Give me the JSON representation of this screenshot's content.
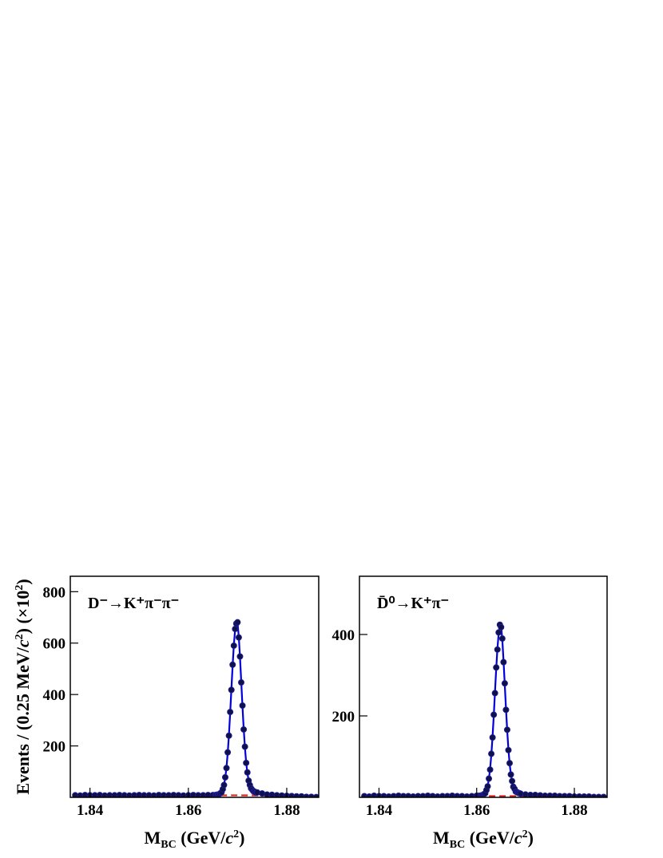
{
  "chart_data": [
    {
      "type": "scatter",
      "annotation": "D⁻→K⁺π⁻π⁻",
      "xlabel_parts": [
        "M",
        "BC",
        " (GeV/",
        "c",
        "2",
        ")"
      ],
      "ylabel_parts": [
        "Events / (0.25 MeV/",
        "c",
        "2",
        ") (×10",
        "2",
        ")"
      ],
      "xlim": [
        1.836,
        1.8865
      ],
      "ylim": [
        0,
        860
      ],
      "xticks": [
        1.84,
        1.86,
        1.88
      ],
      "yticks": [
        200,
        400,
        600,
        800
      ],
      "x": [
        1.837,
        1.838,
        1.839,
        1.84,
        1.841,
        1.842,
        1.843,
        1.844,
        1.845,
        1.846,
        1.847,
        1.848,
        1.849,
        1.85,
        1.851,
        1.852,
        1.853,
        1.854,
        1.855,
        1.856,
        1.857,
        1.858,
        1.859,
        1.86,
        1.861,
        1.862,
        1.863,
        1.864,
        1.865,
        1.8655,
        1.86575,
        1.866,
        1.86625,
        1.8665,
        1.86675,
        1.867,
        1.86725,
        1.8675,
        1.86775,
        1.868,
        1.86825,
        1.8685,
        1.86875,
        1.869,
        1.86925,
        1.8695,
        1.86975,
        1.87,
        1.87025,
        1.8705,
        1.87075,
        1.871,
        1.87125,
        1.8715,
        1.87175,
        1.872,
        1.87225,
        1.8725,
        1.87275,
        1.873,
        1.87325,
        1.8735,
        1.87375,
        1.874,
        1.875,
        1.876,
        1.877,
        1.878,
        1.879,
        1.88,
        1.881,
        1.882,
        1.883,
        1.884,
        1.885,
        1.886
      ],
      "series": [
        {
          "style": "dashed",
          "color": "#dd2222",
          "values": [
            8,
            8,
            8,
            8,
            8,
            8,
            8,
            8,
            8,
            8,
            8,
            8,
            8,
            8,
            8,
            8,
            8,
            8,
            8,
            8,
            8,
            8,
            8,
            8,
            8,
            8,
            8,
            8,
            8,
            8,
            8,
            8,
            8,
            8,
            8,
            8,
            8,
            8,
            8,
            8,
            8,
            8,
            8,
            8,
            8,
            8,
            8,
            7.9,
            7.9,
            7.9,
            7.9,
            7.8,
            7.8,
            7.8,
            7.8,
            7.7,
            7.7,
            7.7,
            7.7,
            7.6,
            7.6,
            7.6,
            7.5,
            7.5,
            7.2,
            6.8,
            6.4,
            6,
            5.5,
            5,
            4.4,
            3.7,
            3,
            2.2,
            1.3,
            0.4
          ]
        },
        {
          "style": "line",
          "color": "#0000dd",
          "values": [
            8,
            8,
            8,
            8,
            8,
            8,
            8,
            8,
            8,
            8,
            8,
            8,
            8,
            8,
            8,
            8,
            8,
            8,
            8,
            8,
            8,
            8,
            8,
            8,
            8,
            8,
            8.2,
            8.4,
            8.7,
            9,
            9.5,
            10,
            12,
            15,
            21,
            31,
            49,
            76,
            116,
            172,
            243,
            328,
            421,
            513,
            593,
            651,
            680,
            678,
            625,
            544,
            450,
            354,
            267,
            194,
            136,
            95,
            66,
            47,
            36,
            28,
            24,
            21,
            19,
            18,
            14,
            11.6,
            9.8,
            8.3,
            7.1,
            6.1,
            5.2,
            4.3,
            3.4,
            2.5,
            1.6,
            0.6
          ]
        },
        {
          "style": "points",
          "color": "#10104a",
          "values": [
            8,
            7,
            9,
            8,
            8,
            9,
            7,
            8,
            8,
            9,
            8,
            7,
            8,
            9,
            8,
            8,
            7,
            9,
            8,
            8,
            9,
            8,
            7,
            8,
            9,
            8,
            8,
            9,
            9,
            9,
            10,
            11,
            12,
            16,
            20,
            32,
            48,
            78,
            114,
            175,
            240,
            332,
            418,
            516,
            590,
            655,
            676,
            681,
            622,
            548,
            447,
            357,
            264,
            197,
            134,
            97,
            65,
            48,
            35,
            29,
            23,
            22,
            18,
            19,
            15,
            11,
            10,
            8,
            7,
            6,
            5,
            4,
            4,
            2,
            2,
            1
          ]
        }
      ]
    },
    {
      "type": "scatter",
      "annotation": "D̄⁰→K⁺π⁻",
      "xlabel_parts": [
        "M",
        "BC",
        " (GeV/",
        "c",
        "2",
        ")"
      ],
      "xlim": [
        1.836,
        1.8867
      ],
      "ylim": [
        0,
        543
      ],
      "xticks": [
        1.84,
        1.86,
        1.88
      ],
      "yticks": [
        200,
        400
      ],
      "x": [
        1.837,
        1.838,
        1.839,
        1.84,
        1.841,
        1.842,
        1.843,
        1.844,
        1.845,
        1.846,
        1.847,
        1.848,
        1.849,
        1.85,
        1.851,
        1.852,
        1.853,
        1.854,
        1.855,
        1.856,
        1.857,
        1.858,
        1.859,
        1.86,
        1.8605,
        1.86075,
        1.861,
        1.86125,
        1.8615,
        1.86175,
        1.862,
        1.86225,
        1.8625,
        1.86275,
        1.863,
        1.86325,
        1.8635,
        1.86375,
        1.864,
        1.86425,
        1.8645,
        1.86475,
        1.865,
        1.86525,
        1.8655,
        1.86575,
        1.866,
        1.86625,
        1.8665,
        1.86675,
        1.867,
        1.86725,
        1.8675,
        1.86775,
        1.868,
        1.86825,
        1.8685,
        1.86875,
        1.869,
        1.87,
        1.871,
        1.872,
        1.873,
        1.874,
        1.875,
        1.876,
        1.877,
        1.878,
        1.879,
        1.88,
        1.881,
        1.882,
        1.883,
        1.884,
        1.885,
        1.886
      ],
      "series": [
        {
          "style": "dashed",
          "color": "#dd2222",
          "values": [
            3,
            3,
            3,
            3,
            3,
            3,
            3,
            3,
            3,
            3,
            3,
            3,
            3,
            3,
            3,
            3,
            3,
            3,
            3,
            3,
            3,
            3,
            3,
            3,
            3,
            3,
            3,
            3,
            3,
            3,
            3,
            3,
            3,
            3,
            3,
            3,
            3,
            3,
            3,
            3,
            3,
            3,
            3,
            3,
            3,
            3,
            3,
            3,
            3,
            3,
            3,
            3,
            3,
            3,
            3,
            3,
            3,
            3,
            3,
            3,
            3,
            2.9,
            2.9,
            2.8,
            2.7,
            2.6,
            2.5,
            2.4,
            2.3,
            2.1,
            1.9,
            1.7,
            1.4,
            1.1,
            0.8,
            0.4
          ]
        },
        {
          "style": "line",
          "color": "#0000dd",
          "values": [
            3,
            3,
            3,
            3,
            3,
            3,
            3,
            3,
            3,
            3,
            3,
            3,
            3,
            3,
            3,
            3,
            3,
            3,
            3,
            3,
            3,
            3,
            3,
            3,
            3.6,
            3.9,
            4.2,
            5.5,
            7.3,
            11,
            17,
            28,
            45,
            70,
            105,
            149,
            201,
            259,
            316,
            366,
            402,
            420,
            421,
            387,
            335,
            277,
            218,
            164,
            118,
            82,
            57,
            39,
            27,
            20,
            15,
            13,
            11,
            10,
            9,
            7,
            6,
            5.5,
            5,
            4.5,
            4,
            3.5,
            3.3,
            3,
            2.8,
            2.5,
            2.2,
            2,
            1.7,
            1.4,
            1.1,
            0.8
          ]
        },
        {
          "style": "points",
          "color": "#10104a",
          "values": [
            3,
            2,
            4,
            3,
            3,
            2,
            3,
            4,
            3,
            3,
            2,
            3,
            3,
            4,
            3,
            2,
            3,
            3,
            4,
            3,
            3,
            2,
            3,
            4,
            4,
            4,
            5,
            6,
            8,
            10,
            18,
            27,
            46,
            68,
            107,
            147,
            203,
            256,
            319,
            363,
            405,
            424,
            418,
            390,
            332,
            280,
            215,
            166,
            116,
            84,
            56,
            40,
            26,
            21,
            14,
            13,
            11,
            10,
            9,
            7,
            6,
            6,
            5,
            4,
            4,
            4,
            3,
            3,
            3,
            2,
            2,
            2,
            2,
            1,
            1,
            1
          ]
        }
      ]
    }
  ]
}
